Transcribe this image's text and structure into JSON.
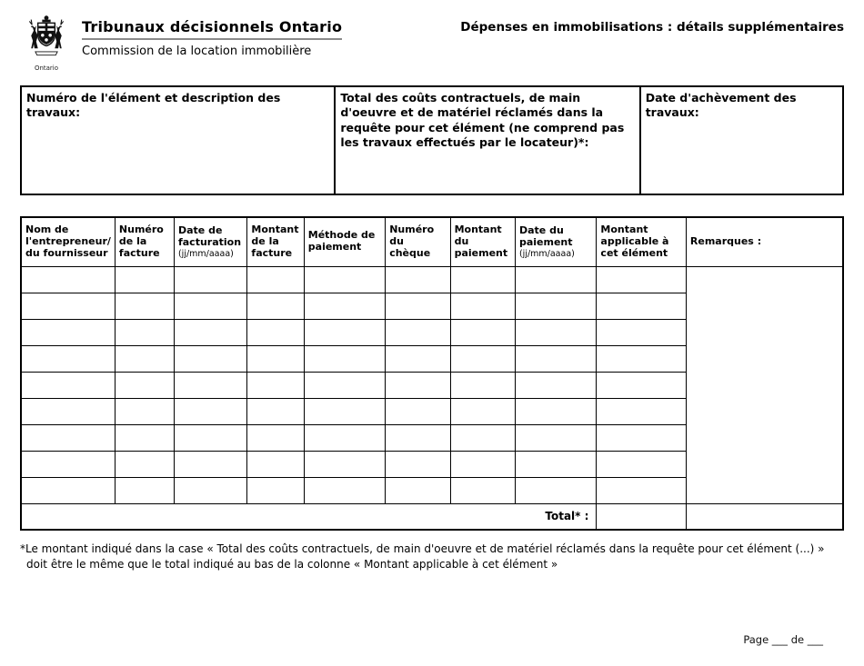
{
  "header": {
    "logo_caption": "Ontario",
    "org_title": "Tribunaux décisionnels Ontario",
    "org_subtitle": "Commission de la location immobilière",
    "doc_title": "Dépenses en immobilisations : détails supplémentaires"
  },
  "info_table": {
    "cells": [
      {
        "label": "Numéro de l'élément et description des travaux:"
      },
      {
        "label": "Total des coûts contractuels, de main d'oeuvre et de matériel réclamés dans la requête pour cet élément (ne comprend pas les travaux effectués par le locateur)*:"
      },
      {
        "label": "Date d'achèvement des travaux:"
      }
    ]
  },
  "details_table": {
    "columns": [
      {
        "key": "nom-entrepreneur",
        "label": "Nom de l'entrepreneur/ du fournisseur"
      },
      {
        "key": "numero-facture",
        "label": "Numéro de la facture"
      },
      {
        "key": "date-facturation",
        "label": "Date de facturation",
        "sublabel": "(jj/mm/aaaa)"
      },
      {
        "key": "montant-facture",
        "label": "Montant de la facture"
      },
      {
        "key": "methode-paiement",
        "label": "Méthode de paiement"
      },
      {
        "key": "numero-cheque",
        "label": "Numéro du chèque"
      },
      {
        "key": "montant-paiement",
        "label": "Montant du paiement"
      },
      {
        "key": "date-paiement",
        "label": "Date du paiement",
        "sublabel": "(jj/mm/aaaa)"
      },
      {
        "key": "montant-applicable",
        "label": "Montant applicable à cet élément"
      },
      {
        "key": "remarques",
        "label": "Remarques :"
      }
    ],
    "data_row_count": 9,
    "total_label": "Total* :"
  },
  "footnote": {
    "line1": "*Le montant indiqué dans la case « Total des coûts contractuels, de main d'oeuvre et de matériel réclamés dans la requête pour cet élément (...) »",
    "line2": "doit être le même que le total indiqué au bas de la colonne « Montant applicable à cet élément »"
  },
  "footer": {
    "page_label": "Page ___ de ___"
  }
}
